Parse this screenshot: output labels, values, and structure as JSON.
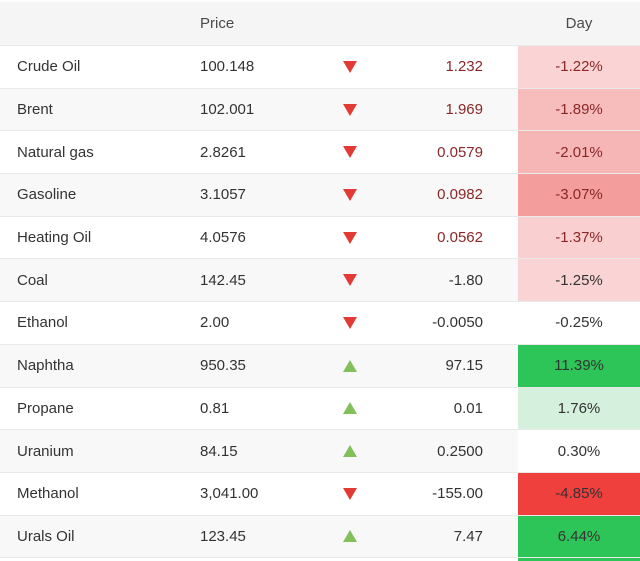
{
  "table": {
    "header": {
      "price": "Price",
      "day": "Day"
    },
    "rows": [
      {
        "name": "Crude Oil",
        "price": "100.148",
        "direction": "down",
        "change": "1.232",
        "change_tone": "maroon",
        "day": "-1.22%",
        "day_tone": "maroon",
        "day_bg": "#fad4d4"
      },
      {
        "name": "Brent",
        "price": "102.001",
        "direction": "down",
        "change": "1.969",
        "change_tone": "maroon",
        "day": "-1.89%",
        "day_tone": "maroon",
        "day_bg": "#f7bcbc"
      },
      {
        "name": "Natural gas",
        "price": "2.8261",
        "direction": "down",
        "change": "0.0579",
        "change_tone": "maroon",
        "day": "-2.01%",
        "day_tone": "maroon",
        "day_bg": "#f7b6b6"
      },
      {
        "name": "Gasoline",
        "price": "3.1057",
        "direction": "down",
        "change": "0.0982",
        "change_tone": "maroon",
        "day": "-3.07%",
        "day_tone": "maroon",
        "day_bg": "#f49d9d"
      },
      {
        "name": "Heating Oil",
        "price": "4.0576",
        "direction": "down",
        "change": "0.0562",
        "change_tone": "maroon",
        "day": "-1.37%",
        "day_tone": "maroon",
        "day_bg": "#f9cfcf"
      },
      {
        "name": "Coal",
        "price": "142.45",
        "direction": "down",
        "change": "-1.80",
        "change_tone": "dark",
        "day": "-1.25%",
        "day_tone": "dark",
        "day_bg": "#fad4d4"
      },
      {
        "name": "Ethanol",
        "price": "2.00",
        "direction": "down",
        "change": "-0.0050",
        "change_tone": "dark",
        "day": "-0.25%",
        "day_tone": "dark",
        "day_bg": "#ffffff"
      },
      {
        "name": "Naphtha",
        "price": "950.35",
        "direction": "up",
        "change": "97.15",
        "change_tone": "dark",
        "day": "11.39%",
        "day_tone": "dark",
        "day_bg": "#2ec558"
      },
      {
        "name": "Propane",
        "price": "0.81",
        "direction": "up",
        "change": "0.01",
        "change_tone": "dark",
        "day": "1.76%",
        "day_tone": "dark",
        "day_bg": "#d5f0dd"
      },
      {
        "name": "Uranium",
        "price": "84.15",
        "direction": "up",
        "change": "0.2500",
        "change_tone": "dark",
        "day": "0.30%",
        "day_tone": "dark",
        "day_bg": "#ffffff"
      },
      {
        "name": "Methanol",
        "price": "3,041.00",
        "direction": "down",
        "change": "-155.00",
        "change_tone": "dark",
        "day": "-4.85%",
        "day_tone": "dark",
        "day_bg": "#ef403d"
      },
      {
        "name": "Urals Oil",
        "price": "123.45",
        "direction": "up",
        "change": "7.47",
        "change_tone": "dark",
        "day": "6.44%",
        "day_tone": "dark",
        "day_bg": "#2ec558"
      }
    ],
    "partial_row": {
      "day_bg": "#2ec558"
    },
    "colors": {
      "up_arrow": "#81c05a",
      "down_arrow": "#e23b36",
      "maroon_text": "#8b2727",
      "dark_text": "#333333",
      "header_bg": "#f5f5f5",
      "alt_row_bg": "#f8f8f8",
      "row_border": "#e9e9e9",
      "positive_strong_bg": "#2ec558",
      "positive_light_bg": "#d5f0dd",
      "negative_strong_bg": "#ef403d",
      "negative_light_bg": "#fad4d4"
    }
  }
}
